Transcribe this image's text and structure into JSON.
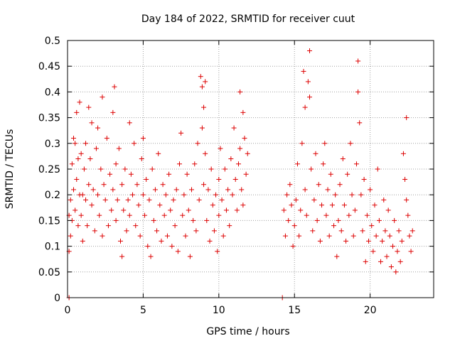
{
  "chart_data": {
    "type": "scatter",
    "title": "Day 184 of 2022, SRMTID for receiver cuut",
    "xlabel": "GPS time / hours",
    "ylabel": "SRMTID / TECUs",
    "xlim": [
      0,
      24.2
    ],
    "ylim": [
      0,
      0.5
    ],
    "x_ticks": [
      0,
      5,
      10,
      15,
      20
    ],
    "y_ticks": [
      0,
      0.05,
      0.1,
      0.15,
      0.2,
      0.25,
      0.3,
      0.35,
      0.4,
      0.45,
      0.5
    ],
    "x_tick_labels": [
      "0",
      "5",
      "10",
      "15",
      "20"
    ],
    "y_tick_labels": [
      "0",
      "0.05",
      "0.1",
      "0.15",
      "0.2",
      "0.25",
      "0.3",
      "0.35",
      "0.4",
      "0.45",
      "0.5"
    ],
    "grid": true,
    "marker": "+",
    "marker_color": "#dd0000",
    "series": [
      {
        "points": [
          [
            0.1,
            0.0
          ],
          [
            0.1,
            0.09
          ],
          [
            0.1,
            0.16
          ],
          [
            0.2,
            0.12
          ],
          [
            0.2,
            0.19
          ],
          [
            0.3,
            0.26
          ],
          [
            0.3,
            0.15
          ],
          [
            0.4,
            0.31
          ],
          [
            0.4,
            0.21
          ],
          [
            0.5,
            0.17
          ],
          [
            0.5,
            0.3
          ],
          [
            0.6,
            0.36
          ],
          [
            0.6,
            0.23
          ],
          [
            0.7,
            0.27
          ],
          [
            0.7,
            0.14
          ],
          [
            0.8,
            0.38
          ],
          [
            0.8,
            0.2
          ],
          [
            0.9,
            0.16
          ],
          [
            0.9,
            0.28
          ],
          [
            1.0,
            0.11
          ],
          [
            1.0,
            0.2
          ],
          [
            1.1,
            0.25
          ],
          [
            1.2,
            0.19
          ],
          [
            1.2,
            0.3
          ],
          [
            1.3,
            0.14
          ],
          [
            1.4,
            0.37
          ],
          [
            1.4,
            0.22
          ],
          [
            1.5,
            0.27
          ],
          [
            1.6,
            0.18
          ],
          [
            1.6,
            0.34
          ],
          [
            1.7,
            0.21
          ],
          [
            1.8,
            0.13
          ],
          [
            1.9,
            0.29
          ],
          [
            2.0,
            0.2
          ],
          [
            2.0,
            0.33
          ],
          [
            2.1,
            0.16
          ],
          [
            2.2,
            0.25
          ],
          [
            2.3,
            0.39
          ],
          [
            2.3,
            0.12
          ],
          [
            2.4,
            0.22
          ],
          [
            2.5,
            0.19
          ],
          [
            2.6,
            0.31
          ],
          [
            2.7,
            0.14
          ],
          [
            2.8,
            0.24
          ],
          [
            2.9,
            0.17
          ],
          [
            3.0,
            0.36
          ],
          [
            3.0,
            0.21
          ],
          [
            3.1,
            0.41
          ],
          [
            3.2,
            0.26
          ],
          [
            3.2,
            0.15
          ],
          [
            3.3,
            0.19
          ],
          [
            3.4,
            0.29
          ],
          [
            3.5,
            0.11
          ],
          [
            3.6,
            0.22
          ],
          [
            3.6,
            0.08
          ],
          [
            3.7,
            0.17
          ],
          [
            3.8,
            0.25
          ],
          [
            3.9,
            0.13
          ],
          [
            4.0,
            0.19
          ],
          [
            4.1,
            0.34
          ],
          [
            4.1,
            0.16
          ],
          [
            4.2,
            0.24
          ],
          [
            4.3,
            0.2
          ],
          [
            4.4,
            0.3
          ],
          [
            4.5,
            0.14
          ],
          [
            4.6,
            0.22
          ],
          [
            4.7,
            0.18
          ],
          [
            4.8,
            0.12
          ],
          [
            4.9,
            0.27
          ],
          [
            5.0,
            0.2
          ],
          [
            5.0,
            0.31
          ],
          [
            5.1,
            0.16
          ],
          [
            5.2,
            0.23
          ],
          [
            5.3,
            0.1
          ],
          [
            5.4,
            0.19
          ],
          [
            5.5,
            0.08
          ],
          [
            5.6,
            0.25
          ],
          [
            5.7,
            0.15
          ],
          [
            5.8,
            0.21
          ],
          [
            5.9,
            0.13
          ],
          [
            6.0,
            0.28
          ],
          [
            6.1,
            0.18
          ],
          [
            6.2,
            0.11
          ],
          [
            6.3,
            0.22
          ],
          [
            6.4,
            0.16
          ],
          [
            6.5,
            0.2
          ],
          [
            6.6,
            0.12
          ],
          [
            6.7,
            0.24
          ],
          [
            6.8,
            0.17
          ],
          [
            6.9,
            0.1
          ],
          [
            7.0,
            0.19
          ],
          [
            7.1,
            0.14
          ],
          [
            7.2,
            0.21
          ],
          [
            7.3,
            0.09
          ],
          [
            7.4,
            0.26
          ],
          [
            7.5,
            0.32
          ],
          [
            7.6,
            0.16
          ],
          [
            7.7,
            0.2
          ],
          [
            7.8,
            0.12
          ],
          [
            7.9,
            0.24
          ],
          [
            8.0,
            0.17
          ],
          [
            8.1,
            0.08
          ],
          [
            8.2,
            0.21
          ],
          [
            8.3,
            0.15
          ],
          [
            8.4,
            0.26
          ],
          [
            8.5,
            0.13
          ],
          [
            8.6,
            0.3
          ],
          [
            8.7,
            0.19
          ],
          [
            8.8,
            0.43
          ],
          [
            8.9,
            0.41
          ],
          [
            8.9,
            0.33
          ],
          [
            9.0,
            0.37
          ],
          [
            9.0,
            0.22
          ],
          [
            9.1,
            0.42
          ],
          [
            9.1,
            0.28
          ],
          [
            9.2,
            0.15
          ],
          [
            9.3,
            0.21
          ],
          [
            9.4,
            0.11
          ],
          [
            9.5,
            0.25
          ],
          [
            9.6,
            0.18
          ],
          [
            9.7,
            0.13
          ],
          [
            9.8,
            0.2
          ],
          [
            9.9,
            0.09
          ],
          [
            10.0,
            0.23
          ],
          [
            10.0,
            0.16
          ],
          [
            10.1,
            0.29
          ],
          [
            10.2,
            0.19
          ],
          [
            10.3,
            0.12
          ],
          [
            10.4,
            0.25
          ],
          [
            10.5,
            0.17
          ],
          [
            10.6,
            0.21
          ],
          [
            10.7,
            0.14
          ],
          [
            10.8,
            0.27
          ],
          [
            10.9,
            0.2
          ],
          [
            11.0,
            0.33
          ],
          [
            11.1,
            0.23
          ],
          [
            11.2,
            0.17
          ],
          [
            11.3,
            0.26
          ],
          [
            11.4,
            0.4
          ],
          [
            11.4,
            0.29
          ],
          [
            11.5,
            0.21
          ],
          [
            11.6,
            0.36
          ],
          [
            11.6,
            0.18
          ],
          [
            11.7,
            0.31
          ],
          [
            11.8,
            0.24
          ],
          [
            11.9,
            0.28
          ],
          [
            14.2,
            0.0
          ],
          [
            14.3,
            0.17
          ],
          [
            14.4,
            0.12
          ],
          [
            14.5,
            0.2
          ],
          [
            14.6,
            0.15
          ],
          [
            14.7,
            0.22
          ],
          [
            14.8,
            0.18
          ],
          [
            14.9,
            0.1
          ],
          [
            15.0,
            0.14
          ],
          [
            15.1,
            0.19
          ],
          [
            15.2,
            0.26
          ],
          [
            15.3,
            0.12
          ],
          [
            15.4,
            0.17
          ],
          [
            15.5,
            0.3
          ],
          [
            15.6,
            0.44
          ],
          [
            15.7,
            0.37
          ],
          [
            15.7,
            0.21
          ],
          [
            15.8,
            0.16
          ],
          [
            15.9,
            0.42
          ],
          [
            16.0,
            0.48
          ],
          [
            16.0,
            0.39
          ],
          [
            16.1,
            0.25
          ],
          [
            16.2,
            0.13
          ],
          [
            16.3,
            0.19
          ],
          [
            16.4,
            0.28
          ],
          [
            16.5,
            0.15
          ],
          [
            16.6,
            0.22
          ],
          [
            16.7,
            0.11
          ],
          [
            16.8,
            0.18
          ],
          [
            16.9,
            0.26
          ],
          [
            17.0,
            0.3
          ],
          [
            17.1,
            0.16
          ],
          [
            17.2,
            0.21
          ],
          [
            17.3,
            0.12
          ],
          [
            17.4,
            0.24
          ],
          [
            17.5,
            0.18
          ],
          [
            17.6,
            0.14
          ],
          [
            17.7,
            0.2
          ],
          [
            17.8,
            0.08
          ],
          [
            17.9,
            0.15
          ],
          [
            18.0,
            0.22
          ],
          [
            18.1,
            0.13
          ],
          [
            18.2,
            0.27
          ],
          [
            18.3,
            0.18
          ],
          [
            18.4,
            0.11
          ],
          [
            18.5,
            0.24
          ],
          [
            18.6,
            0.16
          ],
          [
            18.7,
            0.3
          ],
          [
            18.8,
            0.2
          ],
          [
            18.9,
            0.12
          ],
          [
            19.0,
            0.17
          ],
          [
            19.1,
            0.26
          ],
          [
            19.2,
            0.46
          ],
          [
            19.2,
            0.4
          ],
          [
            19.3,
            0.34
          ],
          [
            19.4,
            0.2
          ],
          [
            19.5,
            0.13
          ],
          [
            19.6,
            0.23
          ],
          [
            19.7,
            0.07
          ],
          [
            19.8,
            0.16
          ],
          [
            19.9,
            0.11
          ],
          [
            20.0,
            0.21
          ],
          [
            20.1,
            0.14
          ],
          [
            20.2,
            0.09
          ],
          [
            20.3,
            0.18
          ],
          [
            20.4,
            0.12
          ],
          [
            20.5,
            0.25
          ],
          [
            20.6,
            0.15
          ],
          [
            20.7,
            0.07
          ],
          [
            20.8,
            0.11
          ],
          [
            20.9,
            0.19
          ],
          [
            21.0,
            0.13
          ],
          [
            21.1,
            0.08
          ],
          [
            21.2,
            0.17
          ],
          [
            21.3,
            0.12
          ],
          [
            21.4,
            0.06
          ],
          [
            21.5,
            0.1
          ],
          [
            21.6,
            0.15
          ],
          [
            21.7,
            0.05
          ],
          [
            21.8,
            0.09
          ],
          [
            21.9,
            0.13
          ],
          [
            22.0,
            0.07
          ],
          [
            22.1,
            0.11
          ],
          [
            22.2,
            0.28
          ],
          [
            22.3,
            0.23
          ],
          [
            22.4,
            0.35
          ],
          [
            22.4,
            0.19
          ],
          [
            22.5,
            0.16
          ],
          [
            22.6,
            0.12
          ],
          [
            22.7,
            0.09
          ],
          [
            22.8,
            0.13
          ]
        ]
      }
    ]
  }
}
